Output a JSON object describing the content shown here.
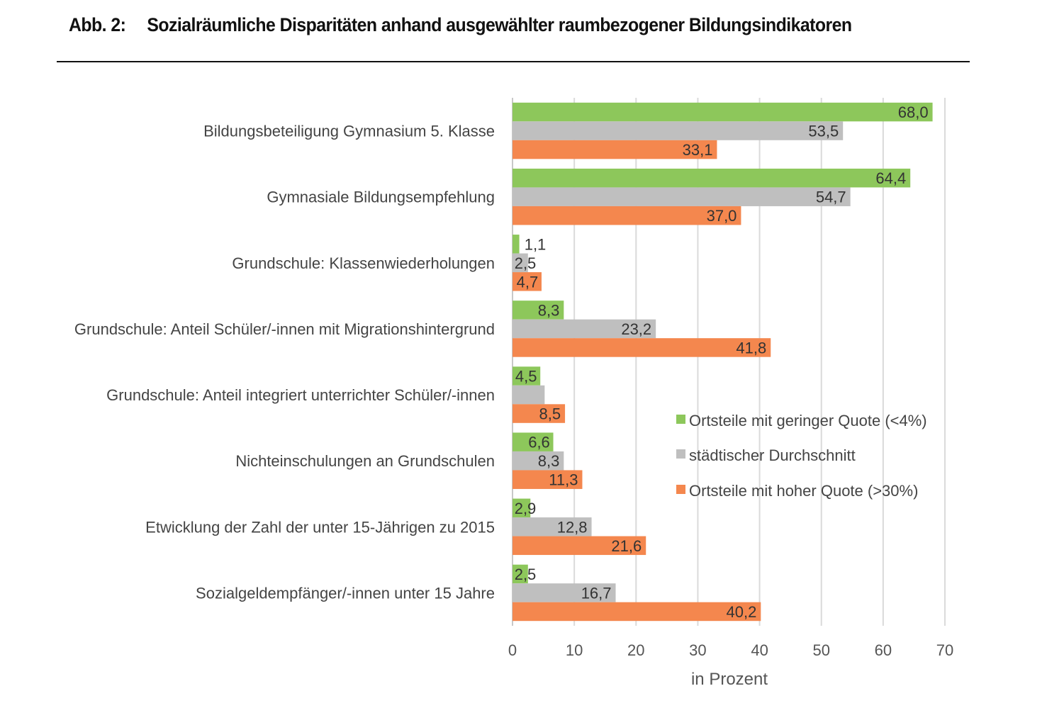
{
  "figure": {
    "number": "Abb. 2:",
    "title": "Sozialräumliche Disparitäten anhand ausgewählter raumbezogener Bildungsindikatoren"
  },
  "chart_data": {
    "type": "bar",
    "orientation": "horizontal",
    "title": "Sozialräumliche Disparitäten anhand ausgewählter raumbezogener Bildungsindikatoren",
    "xlabel": "in Prozent",
    "ylabel": "",
    "xlim": [
      0,
      70
    ],
    "xticks": [
      "0",
      "10",
      "20",
      "30",
      "40",
      "50",
      "60",
      "70"
    ],
    "xtick_values": [
      0,
      10,
      20,
      30,
      40,
      50,
      60,
      70
    ],
    "grid": "vertical",
    "legend_position": "center-right",
    "categories": [
      "Bildungsbeteiligung Gymnasium 5. Klasse",
      "Gymnasiale Bildungsempfehlung",
      "Grundschule: Klassenwiederholungen",
      "Grundschule: Anteil Schüler/-innen mit Migrationshintergrund",
      "Grundschule: Anteil integriert unterrichter Schüler/-innen",
      "Nichteinschulungen an Grundschulen",
      "Etwicklung der Zahl der unter 15-Jährigen zu 2015",
      "Sozialgeldempfänger/-innen unter 15 Jahre"
    ],
    "series": [
      {
        "name": "Ortsteile mit geringer Quote (<4%)",
        "color": "#8dc75b",
        "values": [
          68.0,
          64.4,
          1.1,
          8.3,
          4.5,
          6.6,
          2.9,
          2.5
        ],
        "labels": [
          "68,0",
          "64,4",
          "1,1",
          "8,3",
          "4,5",
          "6,6",
          "2,9",
          "2,5"
        ]
      },
      {
        "name": "städtischer Durchschnitt",
        "color": "#bfbfbf",
        "values": [
          53.5,
          54.7,
          2.5,
          23.2,
          5.2,
          8.3,
          12.8,
          16.7
        ],
        "labels": [
          "53,5",
          "54,7",
          "2,5",
          "23,2",
          "",
          "8,3",
          "12,8",
          "16,7"
        ]
      },
      {
        "name": "Ortsteile mit hoher Quote (>30%)",
        "color": "#f4874e",
        "values": [
          33.1,
          37.0,
          4.7,
          41.8,
          8.5,
          11.3,
          21.6,
          40.2
        ],
        "labels": [
          "33,1",
          "37,0",
          "4,7",
          "41,8",
          "8,5",
          "11,3",
          "21,6",
          "40,2"
        ]
      }
    ]
  }
}
